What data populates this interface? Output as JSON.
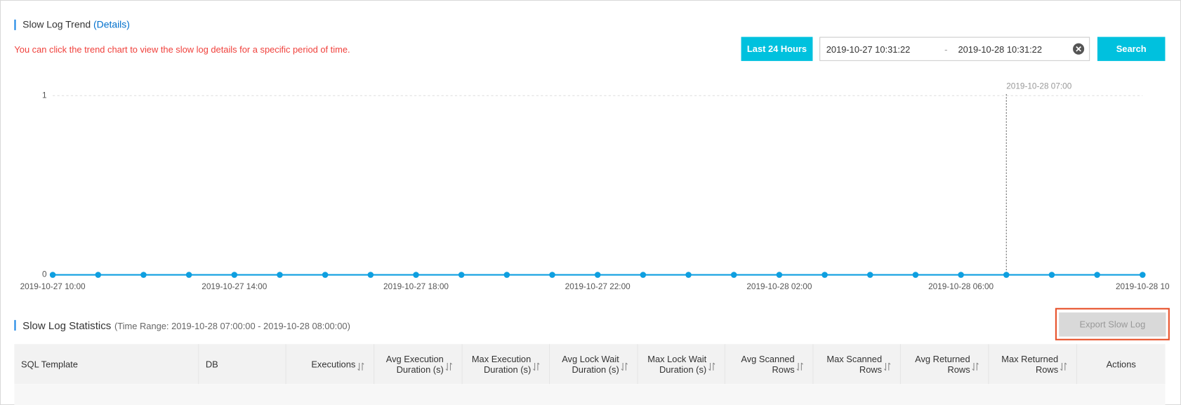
{
  "trend": {
    "title": "Slow Log Trend",
    "link": "(Details)",
    "hint": "You can click the trend chart to view the slow log details for a specific period of time."
  },
  "controls": {
    "range_button": "Last 24 Hours",
    "start": "2019-10-27 10:31:22",
    "separator": "-",
    "end": "2019-10-28 10:31:22",
    "search": "Search"
  },
  "chart_data": {
    "type": "line",
    "categories": [
      "2019-10-27 10:00",
      null,
      null,
      null,
      "2019-10-27 14:00",
      null,
      null,
      null,
      "2019-10-27 18:00",
      null,
      null,
      null,
      "2019-10-27 22:00",
      null,
      null,
      null,
      "2019-10-28 02:00",
      null,
      null,
      null,
      "2019-10-28 06:00",
      null,
      null,
      null,
      "2019-10-28 10"
    ],
    "series": [
      {
        "color": "#0e9fe0",
        "values": [
          0,
          0,
          0,
          0,
          0,
          0,
          0,
          0,
          0,
          0,
          0,
          0,
          0,
          0,
          0,
          0,
          0,
          0,
          0,
          0,
          0,
          0,
          0,
          0,
          0
        ]
      }
    ],
    "ylim": [
      0,
      1
    ],
    "yticks": [
      0,
      1
    ],
    "grid": true,
    "crosshair": {
      "index": 21,
      "label": "2019-10-28 07:00"
    }
  },
  "stats": {
    "title": "Slow Log Statistics",
    "range": "(Time Range: 2019-10-28 07:00:00 - 2019-10-28 08:00:00)",
    "export": "Export Slow Log"
  },
  "table": {
    "headers": [
      "SQL Template",
      "DB",
      "Executions",
      "Avg Execution Duration (s)",
      "Max Execution Duration (s)",
      "Avg Lock Wait Duration (s)",
      "Max Lock Wait Duration (s)",
      "Avg Scanned Rows",
      "Max Scanned Rows",
      "Avg Returned Rows",
      "Max Returned Rows",
      "Actions"
    ]
  }
}
